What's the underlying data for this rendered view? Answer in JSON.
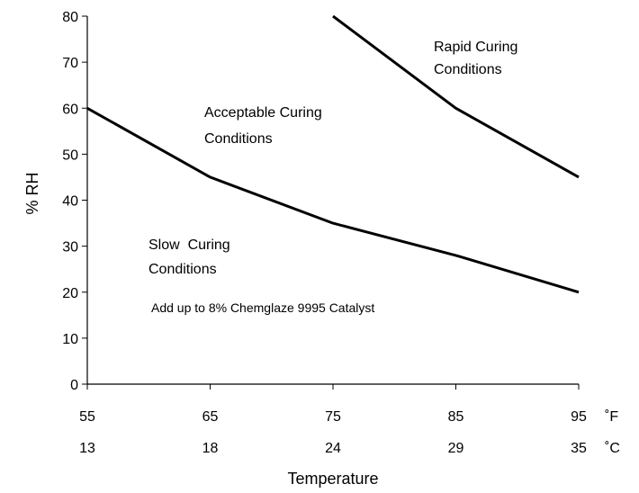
{
  "chart_data": {
    "type": "line",
    "title": "",
    "xlabel": "Temperature",
    "ylabel": "% RH",
    "xlim": [
      55,
      95
    ],
    "ylim": [
      0,
      80
    ],
    "grid": false,
    "y_ticks": [
      0,
      10,
      20,
      30,
      40,
      50,
      60,
      70,
      80
    ],
    "x_ticks_f": [
      {
        "value": 55,
        "label": "55"
      },
      {
        "value": 65,
        "label": "65"
      },
      {
        "value": 75,
        "label": "75"
      },
      {
        "value": 85,
        "label": "85"
      },
      {
        "value": 95,
        "label": "95"
      }
    ],
    "x_ticks_c": [
      "13",
      "18",
      "24",
      "29",
      "35"
    ],
    "unit_f": "˚F",
    "unit_c": "˚C",
    "series": [
      {
        "x": [
          55,
          65,
          75,
          85,
          95
        ],
        "y": [
          60,
          45,
          35,
          28,
          20
        ]
      },
      {
        "x": [
          75,
          85,
          95
        ],
        "y": [
          80,
          60,
          45
        ]
      }
    ],
    "annotations": {
      "rapid": [
        "Rapid Curing",
        "Conditions"
      ],
      "acceptable": [
        "Acceptable Curing",
        "Conditions"
      ],
      "slow": [
        "Slow  Curing",
        "Conditions"
      ],
      "catalyst": "Add up to 8% Chemglaze 9995 Catalyst"
    }
  }
}
